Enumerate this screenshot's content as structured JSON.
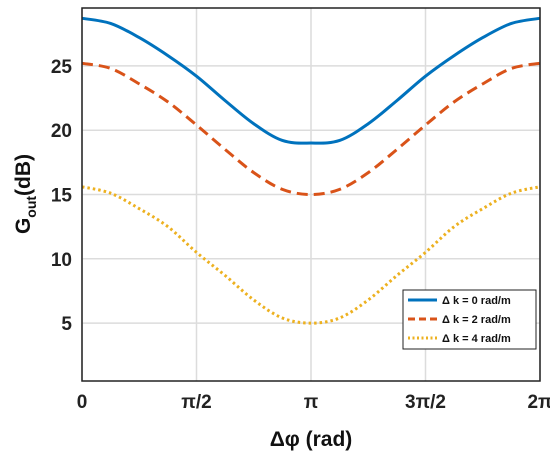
{
  "chart_data": {
    "type": "line",
    "xlabel": "Δφ (rad)",
    "ylabel": {
      "main": "G",
      "sub": "out",
      "rest": "(dB)"
    },
    "xlim": [
      0,
      6.283185
    ],
    "ylim": [
      0.5,
      29.5
    ],
    "x_ticks": [
      {
        "value": 0,
        "label": "0"
      },
      {
        "value": 1.570796,
        "label": "π/2"
      },
      {
        "value": 3.141593,
        "label": "π"
      },
      {
        "value": 4.712389,
        "label": "3π/2"
      },
      {
        "value": 6.283185,
        "label": "2π"
      }
    ],
    "y_ticks": [
      {
        "value": 5,
        "label": "5"
      },
      {
        "value": 10,
        "label": "10"
      },
      {
        "value": 15,
        "label": "15"
      },
      {
        "value": 20,
        "label": "20"
      },
      {
        "value": 25,
        "label": "25"
      }
    ],
    "grid": true,
    "legend_position": "bottom-right",
    "x": [
      0,
      0.3927,
      0.7854,
      1.1781,
      1.5708,
      1.9635,
      2.3562,
      2.7489,
      3.1416,
      3.5343,
      3.927,
      4.3197,
      4.7124,
      5.1051,
      5.4978,
      5.8905,
      6.2832
    ],
    "series": [
      {
        "name": "Δ k = 0 rad/m",
        "color": "#0072BD",
        "dash": "solid",
        "values": [
          28.7,
          28.3,
          27.2,
          25.8,
          24.2,
          22.3,
          20.5,
          19.2,
          19.0,
          19.2,
          20.5,
          22.3,
          24.2,
          25.8,
          27.2,
          28.3,
          28.7
        ]
      },
      {
        "name": "Δ k = 2 rad/m",
        "color": "#D95319",
        "dash": "dashed",
        "values": [
          25.2,
          24.8,
          23.6,
          22.2,
          20.4,
          18.5,
          16.7,
          15.4,
          15.0,
          15.4,
          16.7,
          18.5,
          20.4,
          22.2,
          23.6,
          24.8,
          25.2
        ]
      },
      {
        "name": "Δ k = 4 rad/m",
        "color": "#EDB120",
        "dash": "dotted",
        "values": [
          15.6,
          15.1,
          13.9,
          12.5,
          10.5,
          8.7,
          6.8,
          5.4,
          5.0,
          5.4,
          6.8,
          8.7,
          10.5,
          12.5,
          13.9,
          15.1,
          15.6
        ]
      }
    ]
  }
}
